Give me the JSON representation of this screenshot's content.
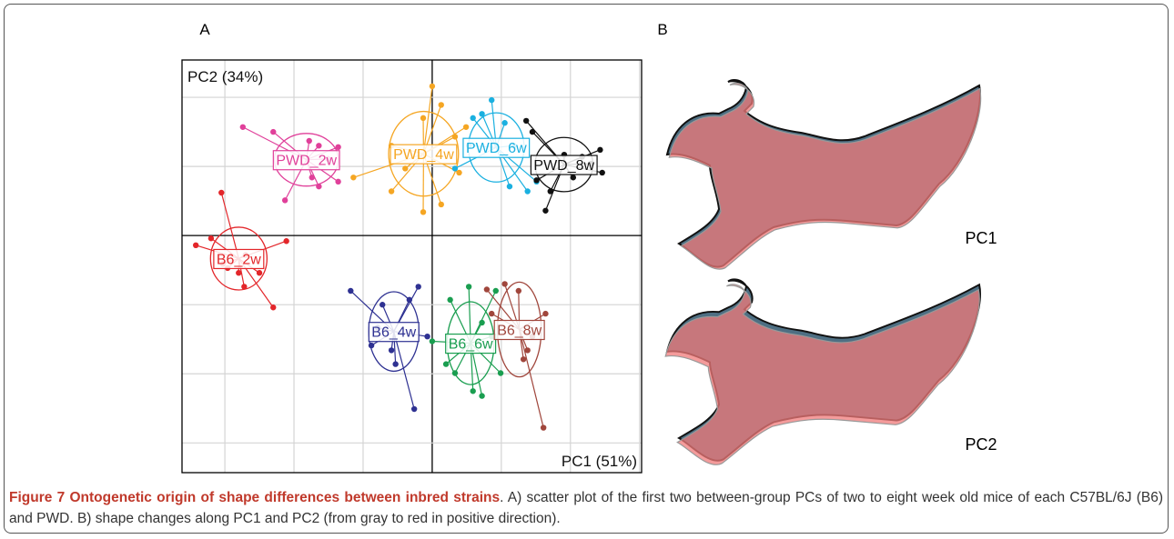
{
  "chart_data": {
    "type": "scatter",
    "panel_label": "A",
    "xlabel": "PC1 (51%)",
    "ylabel": "PC2 (34%)",
    "xlim": [
      -3.62,
      3.03
    ],
    "ylim": [
      -3.43,
      2.54
    ],
    "xgrid": [
      -3,
      -2,
      -1,
      0,
      1,
      2,
      3
    ],
    "ygrid": [
      -3,
      -2,
      -1,
      0,
      1,
      2
    ],
    "series": [
      {
        "name": "PWD_2w",
        "color": "#e0409a",
        "x": [
          -2.74,
          -2.3,
          -1.78,
          -1.64,
          -1.36,
          -1.51,
          -1.36,
          -1.64,
          -2.13,
          -1.74
        ],
        "values": [
          1.57,
          1.5,
          1.37,
          1.3,
          1.28,
          1.11,
          0.78,
          0.71,
          0.51,
          0.84
        ]
      },
      {
        "name": "B6_2w",
        "color": "#e3262a",
        "x": [
          -3.05,
          -3.42,
          -3.2,
          -3.03,
          -2.8,
          -2.72,
          -2.3,
          -2.7,
          -2.11,
          -2.96,
          -2.5
        ],
        "values": [
          0.62,
          -0.14,
          -0.04,
          -0.41,
          -0.54,
          -0.74,
          -1.04,
          -0.28,
          -0.08,
          -0.47,
          -0.54
        ]
      },
      {
        "name": "PWD_4w",
        "color": "#f5a623",
        "x": [
          -1.14,
          -0.59,
          -0.39,
          -0.13,
          0.0,
          0.13,
          -0.13,
          0.13,
          0.33,
          0.49,
          0.39,
          -0.59
        ],
        "values": [
          0.84,
          0.64,
          0.97,
          1.7,
          2.16,
          1.89,
          0.34,
          0.45,
          1.43,
          1.57,
          0.91,
          1.3
        ]
      },
      {
        "name": "PWD_6w",
        "color": "#1ab0e0",
        "x": [
          0.59,
          0.72,
          0.86,
          1.05,
          1.18,
          0.53,
          1.12,
          1.38,
          1.51,
          0.33
        ],
        "values": [
          1.7,
          1.76,
          1.96,
          1.63,
          1.3,
          1.3,
          0.71,
          0.64,
          0.78,
          0.97
        ]
      },
      {
        "name": "PWD_8w",
        "color": "#111111",
        "x": [
          1.36,
          1.45,
          1.91,
          2.17,
          2.43,
          2.46,
          2.3,
          2.04,
          1.71,
          1.64,
          1.51
        ],
        "values": [
          1.66,
          1.5,
          1.17,
          1.14,
          1.24,
          0.91,
          1.04,
          0.84,
          0.64,
          0.36,
          0.8
        ]
      },
      {
        "name": "B6_4w",
        "color": "#2e3192",
        "x": [
          -1.18,
          -0.72,
          -0.59,
          -0.88,
          -0.53,
          -0.26,
          -0.33,
          -0.2,
          -0.07,
          -0.79
        ],
        "values": [
          -0.8,
          -1.0,
          -1.66,
          -1.59,
          -1.86,
          -2.51,
          -0.93,
          -0.74,
          -1.46,
          -1.33
        ]
      },
      {
        "name": "B6_6w",
        "color": "#1a9e50",
        "x": [
          0.26,
          0.53,
          0.92,
          0.72,
          0.99,
          0.2,
          0.33,
          0.59,
          0.72,
          0.0,
          0.86
        ],
        "values": [
          -0.93,
          -0.74,
          -0.8,
          -1.26,
          -1.99,
          -1.86,
          -1.99,
          -2.25,
          -2.32,
          -1.53,
          -1.46
        ]
      },
      {
        "name": "B6_8w",
        "color": "#a0463c",
        "x": [
          0.79,
          1.05,
          1.25,
          1.64,
          1.38,
          1.32,
          1.45,
          0.86,
          1.61
        ],
        "values": [
          -0.78,
          -0.7,
          -0.8,
          -1.13,
          -1.66,
          -1.79,
          -1.46,
          -1.13,
          -2.78
        ]
      }
    ]
  },
  "panel_b": {
    "panel_label": "B",
    "shape_labels": [
      "PC1",
      "PC2"
    ]
  },
  "caption": {
    "title": "Figure 7 Ontogenetic origin of shape differences between inbred strains",
    "text": ". A) scatter plot of the first two between-group PCs of two to eight week old mice of each C57BL/6J (B6) and PWD. B) shape changes along PC1 and PC2 (from gray to red in positive direction)."
  }
}
